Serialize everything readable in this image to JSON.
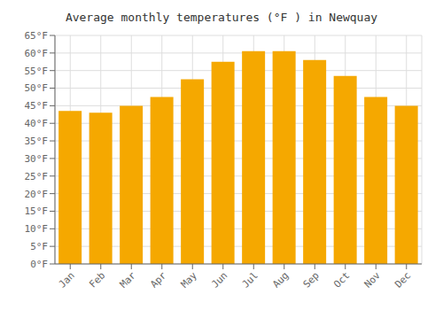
{
  "chart_data": {
    "type": "bar",
    "title": "Average monthly temperatures (°F ) in Newquay",
    "categories": [
      "Jan",
      "Feb",
      "Mar",
      "Apr",
      "May",
      "Jun",
      "Jul",
      "Aug",
      "Sep",
      "Oct",
      "Nov",
      "Dec"
    ],
    "values": [
      43.5,
      43.0,
      45.0,
      47.5,
      52.5,
      57.5,
      60.5,
      60.5,
      58.0,
      53.5,
      47.5,
      45.0
    ],
    "color": "#F5A800",
    "ylim": [
      0,
      65
    ],
    "yticks": [
      {
        "value": 0,
        "label": "0°F"
      },
      {
        "value": 5,
        "label": "5°F"
      },
      {
        "value": 10,
        "label": "10°F"
      },
      {
        "value": 15,
        "label": "15°F"
      },
      {
        "value": 20,
        "label": "20°F"
      },
      {
        "value": 25,
        "label": "25°F"
      },
      {
        "value": 30,
        "label": "30°F"
      },
      {
        "value": 35,
        "label": "35°F"
      },
      {
        "value": 40,
        "label": "40°F"
      },
      {
        "value": 45,
        "label": "45°F"
      },
      {
        "value": 50,
        "label": "50°F"
      },
      {
        "value": 55,
        "label": "55°F"
      },
      {
        "value": 60,
        "label": "60°F"
      },
      {
        "value": 65,
        "label": "65°F"
      }
    ],
    "grid": true
  }
}
